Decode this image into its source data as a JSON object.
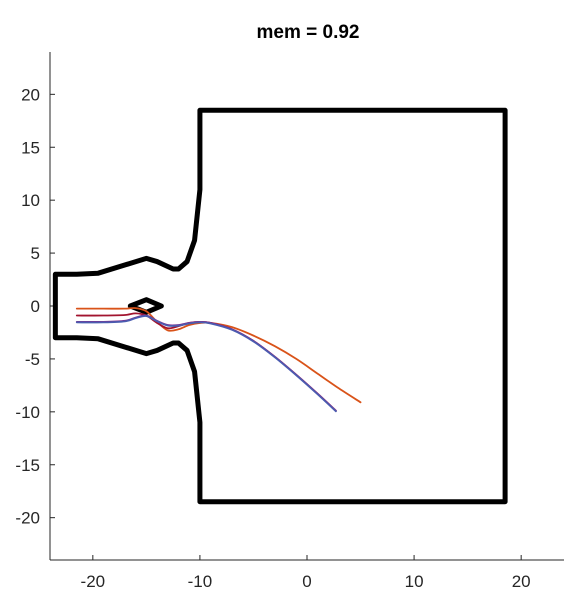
{
  "chart_data": {
    "type": "line",
    "title": "mem = 0.92",
    "xlabel": "",
    "ylabel": "",
    "xlim": [
      -24,
      24
    ],
    "ylim": [
      -24,
      24
    ],
    "x_ticks": [
      -20,
      -10,
      0,
      10,
      20
    ],
    "y_ticks": [
      -20,
      -15,
      -10,
      -5,
      0,
      5,
      10,
      15,
      20
    ],
    "grid": false,
    "legend": "none",
    "boundaries": [
      {
        "name": "channel-wall",
        "color": "#000000",
        "points": [
          [
            -23.5,
            -3
          ],
          [
            -23.5,
            3
          ],
          [
            -21.5,
            3
          ],
          [
            -19.5,
            3.1
          ],
          [
            -15,
            4.5
          ],
          [
            -14,
            4.2
          ],
          [
            -12.5,
            3.5
          ],
          [
            -12,
            3.5
          ],
          [
            -11.2,
            4.2
          ],
          [
            -10.5,
            6.2
          ],
          [
            -10,
            11
          ],
          [
            -10,
            18.5
          ],
          [
            18.5,
            18.5
          ],
          [
            18.5,
            -18.5
          ],
          [
            -10,
            -18.5
          ],
          [
            -10,
            -11
          ],
          [
            -10.5,
            -6.2
          ],
          [
            -11.2,
            -4.2
          ],
          [
            -12,
            -3.5
          ],
          [
            -12.5,
            -3.5
          ],
          [
            -14,
            -4.2
          ],
          [
            -15,
            -4.5
          ],
          [
            -19.5,
            -3.1
          ],
          [
            -21.5,
            -3
          ],
          [
            -23.5,
            -3
          ]
        ]
      },
      {
        "name": "diamond-obstacle",
        "color": "#000000",
        "points": [
          [
            -16.5,
            0
          ],
          [
            -15,
            0.6
          ],
          [
            -13.6,
            0
          ],
          [
            -15,
            -0.6
          ],
          [
            -16.5,
            0
          ]
        ]
      }
    ],
    "series": [
      {
        "color": "#D95319",
        "x": [
          -21.5,
          -19,
          -17,
          -16,
          -15,
          -14,
          -13,
          -12,
          -11,
          -10,
          -9,
          -7,
          -5,
          -3,
          -1,
          1,
          3,
          5
        ],
        "y": [
          -0.25,
          -0.25,
          -0.25,
          -0.2,
          -0.5,
          -1.5,
          -2.3,
          -2.2,
          -1.8,
          -1.6,
          -1.6,
          -2.0,
          -2.8,
          -3.8,
          -5.0,
          -6.4,
          -7.8,
          -9.1
        ]
      },
      {
        "color": "#A2142F",
        "x": [
          -21.5,
          -19,
          -17,
          -16,
          -15,
          -14,
          -13,
          -12,
          -11,
          -10,
          -9,
          -7,
          -5,
          -3,
          -1,
          1,
          2.7
        ],
        "y": [
          -0.9,
          -0.9,
          -0.85,
          -0.7,
          -0.9,
          -1.6,
          -2.1,
          -1.9,
          -1.6,
          -1.5,
          -1.6,
          -2.2,
          -3.3,
          -4.8,
          -6.5,
          -8.3,
          -9.9
        ]
      },
      {
        "color": "#7E2F8E",
        "x": [
          -21.5,
          -19,
          -17,
          -16,
          -15,
          -14,
          -13,
          -12,
          -11,
          -10,
          -9,
          -7,
          -5,
          -3,
          -1,
          1,
          2.7
        ],
        "y": [
          -1.5,
          -1.5,
          -1.4,
          -1.1,
          -0.9,
          -1.4,
          -1.8,
          -1.8,
          -1.6,
          -1.5,
          -1.6,
          -2.2,
          -3.3,
          -4.8,
          -6.5,
          -8.3,
          -9.9
        ]
      },
      {
        "color": "#4A5CB0",
        "x": [
          -21.5,
          -19,
          -17,
          -16,
          -15,
          -14,
          -13,
          -12,
          -11,
          -10,
          -9,
          -7,
          -5,
          -3,
          -1,
          1,
          2.7
        ],
        "y": [
          -1.55,
          -1.55,
          -1.45,
          -1.15,
          -0.95,
          -1.45,
          -1.85,
          -1.85,
          -1.65,
          -1.55,
          -1.65,
          -2.25,
          -3.35,
          -4.85,
          -6.55,
          -8.35,
          -9.95
        ]
      }
    ]
  }
}
